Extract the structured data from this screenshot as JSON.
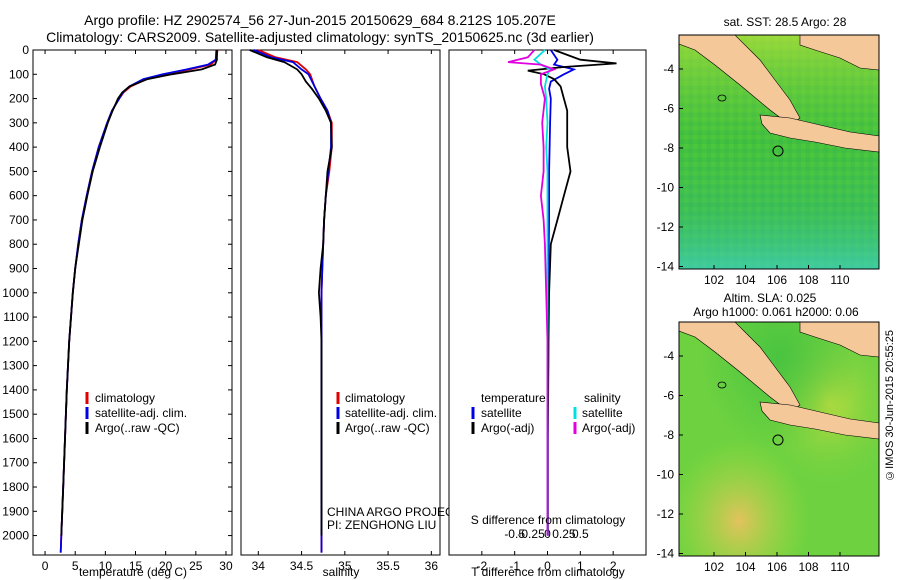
{
  "titles": {
    "line1": "Argo profile: HZ 2902574_56 27-Jun-2015 20150629_684 8.212S 105.207E",
    "line2": "Climatology: CARS2009. Satellite-adjusted climatology: synTS_20150625.nc (3d earlier)"
  },
  "depth_ticks": [
    0,
    100,
    200,
    300,
    400,
    500,
    600,
    700,
    800,
    900,
    1000,
    1100,
    1200,
    1300,
    1400,
    1500,
    1600,
    1700,
    1800,
    1900,
    2000
  ],
  "colors": {
    "clim": "#e00000",
    "sat": "#0000e6",
    "argo": "#000000",
    "sat_diff": "#00e0e0",
    "argo_diff": "#e000e0",
    "land": "#f5c89a"
  },
  "chart_data": [
    {
      "type": "line",
      "xlabel": "temperature (deg C)",
      "xlim": [
        -2,
        31
      ],
      "ylim": [
        2080,
        0
      ],
      "x_ticks": [
        0,
        5,
        10,
        15,
        20,
        25,
        30
      ],
      "legend": [
        "climatology",
        "satellite-adj. clim.",
        "Argo(..raw -QC)"
      ],
      "series": [
        {
          "name": "climatology",
          "depth": [
            0,
            40,
            60,
            80,
            100,
            120,
            150,
            175,
            200,
            250,
            300,
            400,
            500,
            600,
            700,
            800,
            900,
            1000,
            1100,
            1200,
            1400,
            1600,
            1800,
            2000,
            2070
          ],
          "values": [
            28.6,
            28.4,
            27.5,
            24,
            20,
            16.8,
            14.2,
            13,
            12.3,
            11.1,
            10.3,
            8.9,
            7.8,
            6.9,
            6.1,
            5.5,
            5,
            4.6,
            4.3,
            4,
            3.6,
            3.3,
            3,
            2.7,
            2.6
          ]
        },
        {
          "name": "satellite-adj. clim.",
          "depth": [
            0,
            40,
            60,
            80,
            100,
            120,
            150,
            175,
            200,
            250,
            300,
            400,
            500,
            600,
            700,
            800,
            900,
            1000,
            1100,
            1200,
            1400,
            1600,
            1800,
            2000,
            2070
          ],
          "values": [
            28.4,
            28.3,
            27,
            23.5,
            19.5,
            16.3,
            14,
            12.9,
            12.3,
            11.1,
            10.3,
            8.9,
            7.8,
            6.9,
            6.1,
            5.5,
            5,
            4.6,
            4.3,
            4,
            3.6,
            3.3,
            3,
            2.7,
            2.6
          ]
        },
        {
          "name": "Argo(..raw -QC)",
          "depth": [
            0,
            40,
            60,
            80,
            100,
            120,
            150,
            175,
            200,
            250,
            300,
            400,
            500,
            600,
            700,
            800,
            900,
            1000,
            1100,
            1200,
            1400,
            1600,
            1800,
            2000
          ],
          "values": [
            28.5,
            28.5,
            28.2,
            26,
            21,
            17,
            14,
            12.8,
            12.1,
            11.2,
            10.4,
            9.1,
            7.9,
            7,
            6.2,
            5.6,
            5,
            4.6,
            4.3,
            4,
            3.6,
            3.3,
            3,
            2.7
          ]
        }
      ]
    },
    {
      "type": "line",
      "xlabel": "salinity",
      "xlim": [
        33.8,
        36.1
      ],
      "ylim": [
        2080,
        0
      ],
      "x_ticks": [
        34,
        34.5,
        35,
        35.5,
        36
      ],
      "legend": [
        "climatology",
        "satellite-adj. clim.",
        "Argo(..raw -QC)"
      ],
      "footer": [
        "CHINA ARGO PROJECT",
        "PI: ZENGHONG LIU"
      ],
      "series": [
        {
          "name": "climatology",
          "depth": [
            0,
            30,
            50,
            80,
            100,
            150,
            200,
            250,
            300,
            400,
            500,
            600,
            700,
            800,
            900,
            1000,
            1200,
            1400,
            1600,
            1800,
            2000,
            2070
          ],
          "values": [
            34.0,
            34.2,
            34.45,
            34.55,
            34.6,
            34.65,
            34.72,
            34.8,
            34.85,
            34.85,
            34.82,
            34.78,
            34.76,
            34.75,
            34.74,
            34.73,
            34.73,
            34.73,
            34.73,
            34.73,
            34.73,
            34.73
          ]
        },
        {
          "name": "satellite-adj. clim.",
          "depth": [
            0,
            30,
            50,
            80,
            100,
            150,
            200,
            250,
            300,
            400,
            500,
            600,
            700,
            800,
            900,
            1000,
            1200,
            1400,
            1600,
            1800,
            2000,
            2070
          ],
          "values": [
            33.95,
            34.15,
            34.4,
            34.5,
            34.58,
            34.65,
            34.72,
            34.8,
            34.84,
            34.84,
            34.81,
            34.78,
            34.76,
            34.75,
            34.74,
            34.73,
            34.73,
            34.73,
            34.73,
            34.73,
            34.73,
            34.73
          ]
        },
        {
          "name": "Argo(..raw -QC)",
          "depth": [
            0,
            30,
            50,
            80,
            100,
            130,
            160,
            200,
            250,
            300,
            400,
            500,
            600,
            700,
            800,
            900,
            1000,
            1100,
            1200,
            1400,
            1600,
            1800,
            2000
          ],
          "values": [
            33.9,
            34.1,
            34.3,
            34.45,
            34.5,
            34.55,
            34.62,
            34.7,
            34.78,
            34.84,
            34.85,
            34.8,
            34.78,
            34.76,
            34.75,
            34.72,
            34.7,
            34.72,
            34.73,
            34.73,
            34.73,
            34.73,
            34.73
          ]
        }
      ]
    },
    {
      "type": "line",
      "xlabel": "T difference from climatology",
      "xlabel_top": "S difference from climatology",
      "t_ticks": [
        -2,
        -1,
        0,
        1,
        2
      ],
      "s_ticks": [
        "-0.5",
        "-0.25",
        "0",
        "0.25",
        "0.5"
      ],
      "xlim": [
        -3,
        3
      ],
      "ylim": [
        2080,
        0
      ],
      "legend_temperature": "temperature",
      "legend_salinity": "salinity",
      "legend_items": [
        "satellite",
        "Argo(-adj)",
        "satellite",
        "Argo(-adj)"
      ],
      "series": [
        {
          "name": "T satellite",
          "depth": [
            0,
            40,
            60,
            80,
            100,
            130,
            160,
            200,
            300,
            500,
            700,
            900,
            1100,
            1300,
            1500,
            1800,
            2000
          ],
          "values": [
            0.1,
            0.3,
            0.2,
            0.8,
            0.5,
            0.1,
            0.05,
            0.1,
            0.08,
            0.05,
            0.05,
            0.03,
            0.02,
            0.02,
            0.01,
            0.01,
            0.01
          ]
        },
        {
          "name": "T Argo(-adj)",
          "depth": [
            0,
            40,
            55,
            70,
            85,
            100,
            120,
            150,
            200,
            250,
            300,
            400,
            500,
            600,
            700,
            800,
            1000,
            1200,
            1400,
            1600,
            1800,
            2000
          ],
          "values": [
            0.2,
            1.0,
            2.1,
            0.5,
            -0.6,
            -0.1,
            0.2,
            0.4,
            0.5,
            0.6,
            0.6,
            0.6,
            0.7,
            0.5,
            0.3,
            0.1,
            0.05,
            0.03,
            0.02,
            0.01,
            0.01,
            0.01
          ]
        },
        {
          "name": "S satellite",
          "depth": [
            0,
            40,
            60,
            80,
            100,
            150,
            200,
            300,
            400,
            500,
            700,
            900,
            1100,
            1300,
            1500,
            1800,
            2000
          ],
          "values": [
            -0.02,
            -0.1,
            -0.05,
            0.02,
            0,
            -0.02,
            -0.01,
            0,
            -0.01,
            0,
            0,
            0,
            0,
            0,
            0,
            0,
            0
          ]
        },
        {
          "name": "S Argo(-adj)",
          "depth": [
            0,
            30,
            50,
            60,
            80,
            100,
            140,
            200,
            300,
            400,
            500,
            600,
            700,
            800,
            1000,
            1200,
            1400,
            1600,
            1800,
            2000
          ],
          "values": [
            -0.1,
            -0.15,
            -0.3,
            -0.05,
            0.05,
            -0.05,
            -0.05,
            -0.02,
            -0.04,
            -0.03,
            -0.03,
            -0.05,
            -0.03,
            -0.02,
            -0.01,
            0,
            0,
            0,
            0,
            0
          ]
        }
      ]
    }
  ],
  "maps": {
    "top_title": "sat. SST: 28.5 Argo: 28",
    "bottom_title_1": "Altim. SLA: 0.025",
    "bottom_title_2": "Argo h1000: 0.061 h2000: 0.06",
    "lon_ticks": [
      "102",
      "104",
      "106",
      "108",
      "110"
    ],
    "lat_ticks": [
      "-4",
      "-6",
      "-8",
      "-10",
      "-12",
      "-14"
    ]
  },
  "footer_stamp": "©IMOS 30-Jun-2015 20:55:25"
}
